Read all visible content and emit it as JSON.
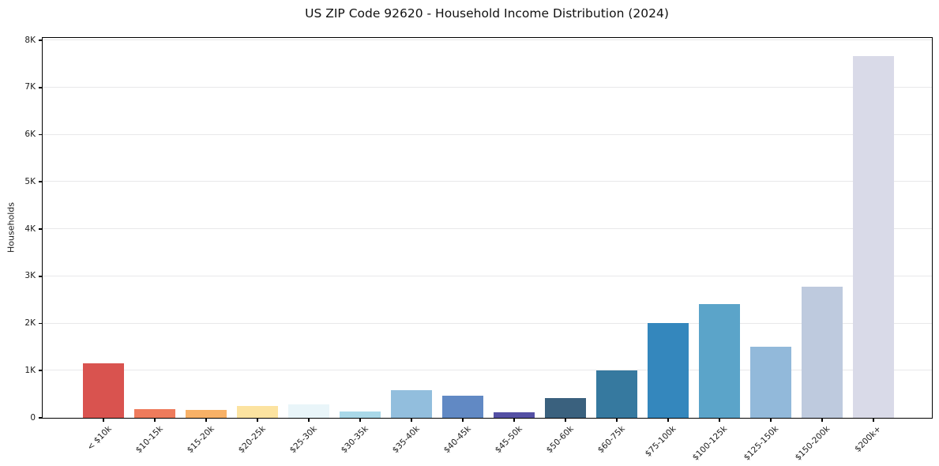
{
  "title": "US ZIP Code 92620 - Household Income Distribution (2024)",
  "chart_data": {
    "type": "bar",
    "title": "US ZIP Code 92620 - Household Income Distribution (2024)",
    "xlabel": "",
    "ylabel": "Households",
    "categories": [
      "< $10k",
      "$10-15k",
      "$15-20k",
      "$20-25k",
      "$25-30k",
      "$30-35k",
      "$35-40k",
      "$40-45k",
      "$45-50k",
      "$50-60k",
      "$60-75k",
      "$75-100k",
      "$100-125k",
      "$125-150k",
      "$150-200k",
      "$200k+"
    ],
    "values": [
      1150,
      185,
      170,
      250,
      290,
      140,
      580,
      470,
      120,
      420,
      1000,
      2010,
      2410,
      1510,
      2780,
      7660
    ],
    "bar_colors": [
      "#d9534f",
      "#ee7b5c",
      "#f8b167",
      "#fce3a0",
      "#e9f5f9",
      "#a9d8e8",
      "#92bedd",
      "#6189c4",
      "#5450a4",
      "#3a617e",
      "#36799f",
      "#3487bd",
      "#5ba4c9",
      "#92b9da",
      "#becade",
      "#d9dae8"
    ],
    "ytick_labels": [
      "0",
      "1K",
      "2K",
      "3K",
      "4K",
      "5K",
      "6K",
      "7K",
      "8K"
    ],
    "ytick_values": [
      0,
      1000,
      2000,
      3000,
      4000,
      5000,
      6000,
      7000,
      8000
    ],
    "ylim": [
      0,
      8050
    ],
    "grid": "horizontal",
    "legend": "none",
    "grid_color": "#e8e8ea",
    "axis_color": "#000000",
    "background_color": "#ffffff"
  }
}
